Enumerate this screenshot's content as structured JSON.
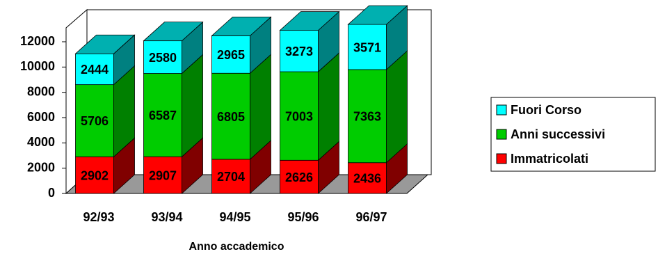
{
  "chart_data": {
    "type": "bar3d_stacked",
    "x_label": "Anno accademico",
    "categories": [
      "92/93",
      "93/94",
      "94/95",
      "95/96",
      "96/97"
    ],
    "series": [
      {
        "name": "Immatricolati",
        "color": "#ff0000",
        "side_color": "#800000",
        "values": [
          2902,
          2907,
          2704,
          2626,
          2436
        ]
      },
      {
        "name": "Anni successivi",
        "color": "#00cc00",
        "side_color": "#008000",
        "values": [
          5706,
          6587,
          6805,
          7003,
          7363
        ]
      },
      {
        "name": "Fuori Corso",
        "color": "#00ffff",
        "side_color": "#008080",
        "values": [
          2444,
          2580,
          2965,
          3273,
          3571
        ]
      }
    ],
    "ylim": [
      0,
      12000
    ],
    "yticks": [
      0,
      2000,
      4000,
      6000,
      8000,
      10000,
      12000
    ],
    "legend": "right"
  }
}
